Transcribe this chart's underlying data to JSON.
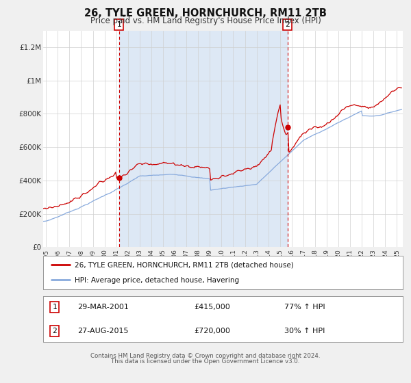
{
  "title": "26, TYLE GREEN, HORNCHURCH, RM11 2TB",
  "subtitle": "Price paid vs. HM Land Registry's House Price Index (HPI)",
  "ylim": [
    0,
    1300000
  ],
  "yticks": [
    0,
    200000,
    400000,
    600000,
    800000,
    1000000,
    1200000
  ],
  "ytick_labels": [
    "£0",
    "£200K",
    "£400K",
    "£600K",
    "£800K",
    "£1M",
    "£1.2M"
  ],
  "xlim_start": 1994.75,
  "xlim_end": 2025.5,
  "xticks": [
    1995,
    1996,
    1997,
    1998,
    1999,
    2000,
    2001,
    2002,
    2003,
    2004,
    2005,
    2006,
    2007,
    2008,
    2009,
    2010,
    2011,
    2012,
    2013,
    2014,
    2015,
    2016,
    2017,
    2018,
    2019,
    2020,
    2021,
    2022,
    2023,
    2024,
    2025
  ],
  "sale1_x": 2001.24,
  "sale1_y": 415000,
  "sale2_x": 2015.65,
  "sale2_y": 720000,
  "legend_label1": "26, TYLE GREEN, HORNCHURCH, RM11 2TB (detached house)",
  "legend_label2": "HPI: Average price, detached house, Havering",
  "annotation1_date": "29-MAR-2001",
  "annotation1_price": "£415,000",
  "annotation1_hpi": "77% ↑ HPI",
  "annotation2_date": "27-AUG-2015",
  "annotation2_price": "£720,000",
  "annotation2_hpi": "30% ↑ HPI",
  "red_color": "#cc0000",
  "blue_color": "#88aadd",
  "shaded_color": "#dde8f5",
  "footer1": "Contains HM Land Registry data © Crown copyright and database right 2024.",
  "footer2": "This data is licensed under the Open Government Licence v3.0.",
  "background_color": "#f0f0f0",
  "plot_bg_color": "#ffffff"
}
